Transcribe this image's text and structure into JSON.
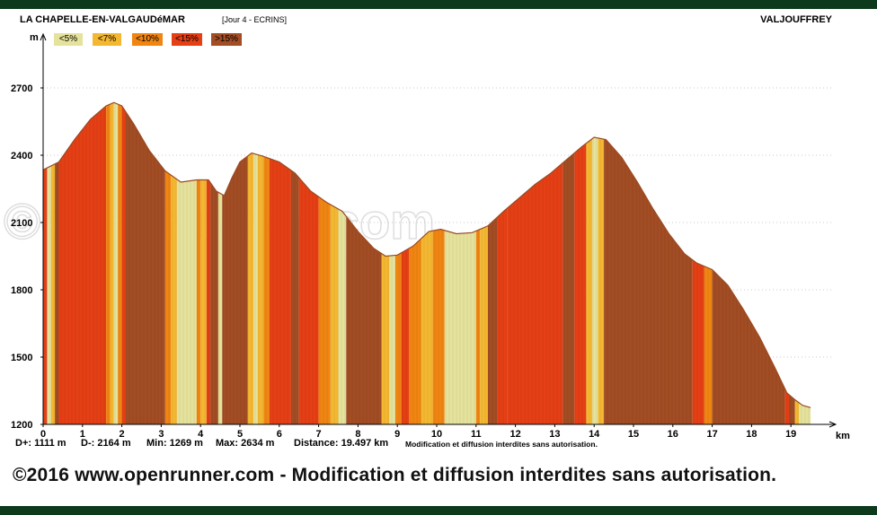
{
  "header": {
    "start_location": "LA CHAPELLE-EN-VALGAUDéMAR",
    "stage": "[Jour 4 - ECRINS]",
    "end_location": "VALJOUFFREY"
  },
  "footer": {
    "copyright": "©2016 www.openrunner.com - Modification et diffusion interdites sans autorisation."
  },
  "watermark": "©openrunner.com",
  "colors": {
    "frame": "#0d3a1c",
    "lt5": "#e5e29c",
    "lt7": "#f4b731",
    "lt10": "#f08512",
    "lt15": "#e53f15",
    "gt15": "#a24d24"
  },
  "chart_data": {
    "type": "area",
    "title": "",
    "xlabel": "km",
    "ylabel": "m",
    "xlim": [
      0,
      20
    ],
    "ylim": [
      1200,
      2900
    ],
    "yticks": [
      1200,
      1500,
      1800,
      2100,
      2400,
      2700
    ],
    "xticks": [
      0,
      1,
      2,
      3,
      4,
      5,
      6,
      7,
      8,
      9,
      10,
      11,
      12,
      13,
      14,
      15,
      16,
      17,
      18,
      19
    ],
    "grid": true,
    "legend": {
      "placement": "top-left",
      "entries": [
        {
          "label": "<5%",
          "color_key": "lt5"
        },
        {
          "label": "<7%",
          "color_key": "lt7"
        },
        {
          "label": "<10%",
          "color_key": "lt10"
        },
        {
          "label": "<15%",
          "color_key": "lt15"
        },
        {
          "label": ">15%",
          "color_key": "gt15"
        }
      ]
    },
    "profile": [
      [
        0,
        2335
      ],
      [
        0.4,
        2370
      ],
      [
        0.8,
        2470
      ],
      [
        1.2,
        2560
      ],
      [
        1.6,
        2620
      ],
      [
        1.8,
        2635
      ],
      [
        2.0,
        2620
      ],
      [
        2.3,
        2540
      ],
      [
        2.7,
        2420
      ],
      [
        3.1,
        2330
      ],
      [
        3.5,
        2280
      ],
      [
        3.9,
        2290
      ],
      [
        4.2,
        2290
      ],
      [
        4.4,
        2240
      ],
      [
        4.6,
        2220
      ],
      [
        4.8,
        2300
      ],
      [
        5.0,
        2370
      ],
      [
        5.3,
        2410
      ],
      [
        5.6,
        2395
      ],
      [
        6.0,
        2370
      ],
      [
        6.4,
        2320
      ],
      [
        6.8,
        2240
      ],
      [
        7.2,
        2190
      ],
      [
        7.6,
        2150
      ],
      [
        8.0,
        2060
      ],
      [
        8.4,
        1985
      ],
      [
        8.7,
        1950
      ],
      [
        9.0,
        1955
      ],
      [
        9.4,
        1995
      ],
      [
        9.8,
        2060
      ],
      [
        10.1,
        2070
      ],
      [
        10.5,
        2050
      ],
      [
        10.9,
        2055
      ],
      [
        11.3,
        2085
      ],
      [
        11.7,
        2150
      ],
      [
        12.1,
        2210
      ],
      [
        12.5,
        2270
      ],
      [
        12.9,
        2320
      ],
      [
        13.3,
        2380
      ],
      [
        13.7,
        2440
      ],
      [
        14.0,
        2480
      ],
      [
        14.3,
        2470
      ],
      [
        14.7,
        2390
      ],
      [
        15.1,
        2280
      ],
      [
        15.5,
        2160
      ],
      [
        15.9,
        2050
      ],
      [
        16.3,
        1960
      ],
      [
        16.6,
        1920
      ],
      [
        17.0,
        1890
      ],
      [
        17.4,
        1820
      ],
      [
        17.8,
        1710
      ],
      [
        18.2,
        1590
      ],
      [
        18.6,
        1450
      ],
      [
        18.9,
        1340
      ],
      [
        19.1,
        1310
      ],
      [
        19.3,
        1285
      ],
      [
        19.5,
        1275
      ]
    ],
    "slope_segments": [
      [
        0.1,
        "lt15"
      ],
      [
        0.2,
        "lt5"
      ],
      [
        0.3,
        "lt7"
      ],
      [
        0.4,
        "gt15"
      ],
      [
        1.6,
        "lt15"
      ],
      [
        1.7,
        "lt10"
      ],
      [
        1.8,
        "lt7"
      ],
      [
        1.9,
        "lt5"
      ],
      [
        2.0,
        "lt10"
      ],
      [
        2.1,
        "lt15"
      ],
      [
        3.1,
        "gt15"
      ],
      [
        3.25,
        "lt10"
      ],
      [
        3.4,
        "lt7"
      ],
      [
        3.9,
        "lt5"
      ],
      [
        4.0,
        "lt10"
      ],
      [
        4.15,
        "lt7"
      ],
      [
        4.25,
        "lt15"
      ],
      [
        4.45,
        "gt15"
      ],
      [
        4.55,
        "lt5"
      ],
      [
        5.2,
        "gt15"
      ],
      [
        5.35,
        "lt7"
      ],
      [
        5.45,
        "lt5"
      ],
      [
        5.6,
        "lt7"
      ],
      [
        5.75,
        "lt10"
      ],
      [
        6.3,
        "lt15"
      ],
      [
        6.5,
        "gt15"
      ],
      [
        7.0,
        "lt15"
      ],
      [
        7.3,
        "lt10"
      ],
      [
        7.5,
        "lt7"
      ],
      [
        7.7,
        "lt5"
      ],
      [
        8.6,
        "gt15"
      ],
      [
        8.8,
        "lt7"
      ],
      [
        8.95,
        "lt5"
      ],
      [
        9.1,
        "lt10"
      ],
      [
        9.3,
        "lt15"
      ],
      [
        9.6,
        "lt10"
      ],
      [
        9.9,
        "lt7"
      ],
      [
        10.2,
        "lt10"
      ],
      [
        10.5,
        "lt5"
      ],
      [
        11.0,
        "lt5"
      ],
      [
        11.1,
        "lt10"
      ],
      [
        11.3,
        "lt7"
      ],
      [
        11.55,
        "gt15"
      ],
      [
        11.8,
        "lt15"
      ],
      [
        13.2,
        "lt15"
      ],
      [
        13.5,
        "gt15"
      ],
      [
        13.8,
        "lt15"
      ],
      [
        13.95,
        "lt7"
      ],
      [
        14.1,
        "lt5"
      ],
      [
        14.25,
        "lt7"
      ],
      [
        16.5,
        "gt15"
      ],
      [
        16.8,
        "lt15"
      ],
      [
        17.0,
        "lt10"
      ],
      [
        18.85,
        "gt15"
      ],
      [
        18.95,
        "lt15"
      ],
      [
        19.1,
        "gt15"
      ],
      [
        19.2,
        "lt7"
      ],
      [
        19.5,
        "lt5"
      ]
    ]
  },
  "stats": {
    "d_plus": "D+: 1111 m",
    "d_minus": "D-: 2164 m",
    "min": "Min: 1269 m",
    "max": "Max: 2634 m",
    "distance": "Distance: 19.497 km",
    "note": "Modification et diffusion interdites sans autorisation."
  }
}
